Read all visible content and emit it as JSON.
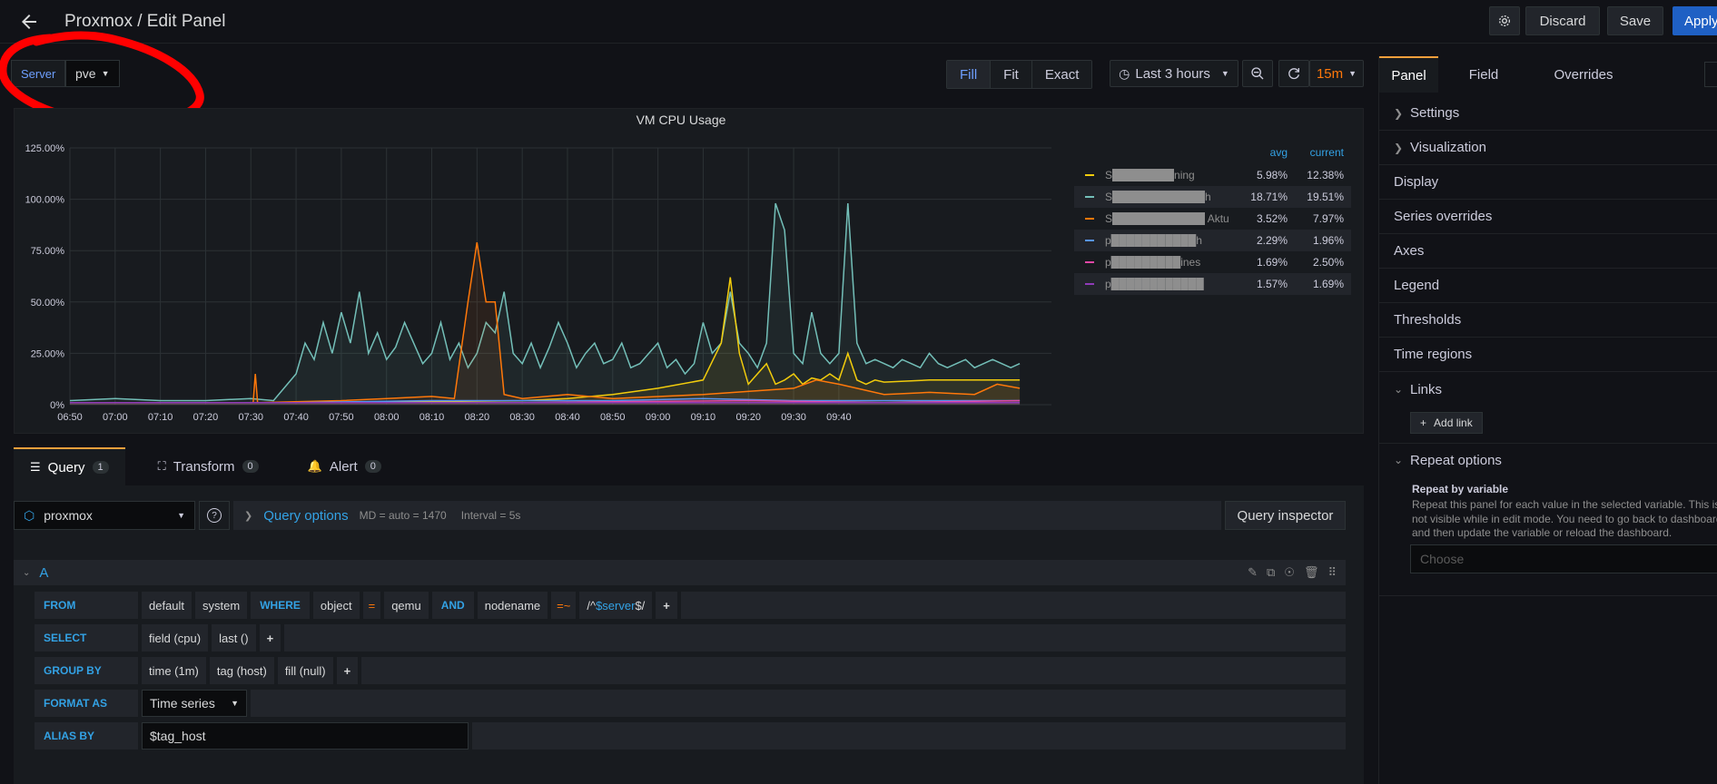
{
  "header": {
    "title": "Proxmox / Edit Panel",
    "discard_label": "Discard",
    "save_label": "Save",
    "apply_label": "Apply"
  },
  "variables": {
    "server_label": "Server",
    "server_value": "pve"
  },
  "view_modes": [
    "Fill",
    "Fit",
    "Exact"
  ],
  "time_picker": {
    "range": "Last 3 hours",
    "refresh": "15m"
  },
  "panel": {
    "title": "VM CPU Usage",
    "legend": {
      "col_avg": "avg",
      "col_current": "current",
      "rows": [
        {
          "name": "S████████ning",
          "avg": "5.98%",
          "current": "12.38%",
          "color": "#f2cc0c"
        },
        {
          "name": "S████████████h",
          "avg": "18.71%",
          "current": "19.51%",
          "color": "#73bfb8"
        },
        {
          "name": "S████████████ Aktuell",
          "avg": "3.52%",
          "current": "7.97%",
          "color": "#ff780a"
        },
        {
          "name": "p███████████h",
          "avg": "2.29%",
          "current": "1.96%",
          "color": "#5794f2"
        },
        {
          "name": "p█████████ines",
          "avg": "1.69%",
          "current": "2.50%",
          "color": "#e048a6"
        },
        {
          "name": "p████████████",
          "avg": "1.57%",
          "current": "1.69%",
          "color": "#8f3bb8"
        }
      ]
    }
  },
  "chart_data": {
    "type": "line",
    "title": "VM CPU Usage",
    "y_ticks": [
      "0%",
      "25.00%",
      "50.00%",
      "75.00%",
      "100.00%",
      "125.00%"
    ],
    "ylim": [
      0,
      125
    ],
    "x_ticks": [
      "06:50",
      "07:00",
      "07:10",
      "07:20",
      "07:30",
      "07:40",
      "07:50",
      "08:00",
      "08:10",
      "08:20",
      "08:30",
      "08:40",
      "08:50",
      "09:00",
      "09:10",
      "09:20",
      "09:30",
      "09:40"
    ],
    "x_range_minutes": [
      0,
      180
    ],
    "series": [
      {
        "color": "#73bfb8",
        "points": [
          [
            0,
            2
          ],
          [
            10,
            3
          ],
          [
            20,
            2
          ],
          [
            30,
            2
          ],
          [
            40,
            3
          ],
          [
            45,
            2
          ],
          [
            50,
            15
          ],
          [
            52,
            30
          ],
          [
            54,
            22
          ],
          [
            56,
            40
          ],
          [
            58,
            25
          ],
          [
            60,
            45
          ],
          [
            62,
            30
          ],
          [
            64,
            55
          ],
          [
            66,
            25
          ],
          [
            68,
            35
          ],
          [
            70,
            22
          ],
          [
            72,
            28
          ],
          [
            74,
            40
          ],
          [
            76,
            30
          ],
          [
            78,
            20
          ],
          [
            80,
            25
          ],
          [
            82,
            40
          ],
          [
            84,
            22
          ],
          [
            86,
            30
          ],
          [
            88,
            18
          ],
          [
            90,
            25
          ],
          [
            92,
            40
          ],
          [
            94,
            35
          ],
          [
            96,
            55
          ],
          [
            98,
            25
          ],
          [
            100,
            20
          ],
          [
            102,
            30
          ],
          [
            104,
            18
          ],
          [
            106,
            28
          ],
          [
            108,
            40
          ],
          [
            110,
            30
          ],
          [
            112,
            18
          ],
          [
            114,
            25
          ],
          [
            116,
            30
          ],
          [
            118,
            20
          ],
          [
            120,
            22
          ],
          [
            122,
            30
          ],
          [
            124,
            18
          ],
          [
            126,
            20
          ],
          [
            128,
            25
          ],
          [
            130,
            30
          ],
          [
            132,
            18
          ],
          [
            134,
            22
          ],
          [
            136,
            15
          ],
          [
            138,
            20
          ],
          [
            140,
            40
          ],
          [
            142,
            25
          ],
          [
            144,
            30
          ],
          [
            146,
            55
          ],
          [
            148,
            30
          ],
          [
            150,
            25
          ],
          [
            152,
            18
          ],
          [
            154,
            30
          ],
          [
            156,
            98
          ],
          [
            158,
            85
          ],
          [
            160,
            25
          ],
          [
            162,
            20
          ],
          [
            164,
            45
          ],
          [
            166,
            25
          ],
          [
            168,
            20
          ],
          [
            170,
            25
          ],
          [
            172,
            98
          ],
          [
            174,
            30
          ],
          [
            176,
            20
          ],
          [
            178,
            22
          ],
          [
            180,
            20
          ],
          [
            182,
            18
          ],
          [
            184,
            22
          ],
          [
            186,
            20
          ],
          [
            188,
            18
          ],
          [
            190,
            25
          ],
          [
            192,
            20
          ],
          [
            194,
            18
          ],
          [
            196,
            20
          ],
          [
            198,
            22
          ],
          [
            200,
            18
          ],
          [
            202,
            20
          ],
          [
            204,
            22
          ],
          [
            206,
            20
          ],
          [
            208,
            18
          ],
          [
            210,
            20
          ]
        ]
      },
      {
        "color": "#f2cc0c",
        "points": [
          [
            0,
            1
          ],
          [
            60,
            1
          ],
          [
            100,
            2
          ],
          [
            110,
            3
          ],
          [
            120,
            5
          ],
          [
            130,
            8
          ],
          [
            140,
            12
          ],
          [
            144,
            30
          ],
          [
            146,
            62
          ],
          [
            148,
            25
          ],
          [
            150,
            10
          ],
          [
            152,
            15
          ],
          [
            154,
            20
          ],
          [
            156,
            10
          ],
          [
            158,
            12
          ],
          [
            160,
            15
          ],
          [
            162,
            10
          ],
          [
            164,
            13
          ],
          [
            166,
            12
          ],
          [
            168,
            15
          ],
          [
            170,
            12
          ],
          [
            172,
            25
          ],
          [
            174,
            12
          ],
          [
            176,
            10
          ],
          [
            178,
            12
          ],
          [
            180,
            11
          ],
          [
            190,
            12
          ],
          [
            200,
            12
          ],
          [
            210,
            12
          ]
        ]
      },
      {
        "color": "#ff780a",
        "points": [
          [
            0,
            1
          ],
          [
            40,
            1
          ],
          [
            40.5,
            1
          ],
          [
            41,
            15
          ],
          [
            41.5,
            1
          ],
          [
            60,
            2
          ],
          [
            70,
            3
          ],
          [
            80,
            4
          ],
          [
            85,
            3
          ],
          [
            88,
            50
          ],
          [
            90,
            79
          ],
          [
            92,
            50
          ],
          [
            94,
            50
          ],
          [
            96,
            5
          ],
          [
            100,
            3
          ],
          [
            110,
            5
          ],
          [
            120,
            3
          ],
          [
            140,
            5
          ],
          [
            160,
            8
          ],
          [
            165,
            12
          ],
          [
            170,
            10
          ],
          [
            180,
            5
          ],
          [
            190,
            6
          ],
          [
            200,
            5
          ],
          [
            205,
            10
          ],
          [
            210,
            8
          ]
        ]
      },
      {
        "color": "#5794f2",
        "points": [
          [
            0,
            1
          ],
          [
            50,
            1
          ],
          [
            80,
            2
          ],
          [
            100,
            2
          ],
          [
            120,
            2
          ],
          [
            140,
            3
          ],
          [
            160,
            2
          ],
          [
            180,
            2
          ],
          [
            200,
            2
          ],
          [
            210,
            2
          ]
        ]
      },
      {
        "color": "#e048a6",
        "points": [
          [
            0,
            1
          ],
          [
            50,
            1
          ],
          [
            100,
            1
          ],
          [
            150,
            2
          ],
          [
            180,
            1
          ],
          [
            210,
            2
          ]
        ]
      },
      {
        "color": "#8f3bb8",
        "points": [
          [
            0,
            1
          ],
          [
            50,
            1
          ],
          [
            100,
            1
          ],
          [
            150,
            1
          ],
          [
            180,
            1
          ],
          [
            210,
            1
          ]
        ]
      }
    ]
  },
  "query_tabs": [
    {
      "label": "Query",
      "count": "1"
    },
    {
      "label": "Transform",
      "count": "0"
    },
    {
      "label": "Alert",
      "count": "0"
    }
  ],
  "query": {
    "datasource": "proxmox",
    "options_label": "Query options",
    "options_md": "MD = auto = 1470",
    "options_interval": "Interval = 5s",
    "inspector_label": "Query inspector",
    "ref_id": "A",
    "from": {
      "kw": "FROM",
      "db": "default",
      "table": "system",
      "where_kw": "WHERE",
      "f1": "object",
      "op1": "=",
      "v1": "qemu",
      "and_kw": "AND",
      "f2": "nodename",
      "op2": "=~",
      "v2_prefix": "/^",
      "v2_var": "$server",
      "v2_suffix": "$/"
    },
    "select": {
      "kw": "SELECT",
      "field": "field (cpu)",
      "fn": "last ()"
    },
    "group": {
      "kw": "GROUP BY",
      "time": "time (1m)",
      "tag": "tag (host)",
      "fill": "fill (null)"
    },
    "format": {
      "kw": "FORMAT AS",
      "value": "Time series"
    },
    "alias": {
      "kw": "ALIAS BY",
      "value": "$tag_host"
    }
  },
  "sidebar": {
    "tabs": [
      "Panel",
      "Field",
      "Overrides"
    ],
    "sections": [
      "Settings",
      "Visualization",
      "Display",
      "Series overrides",
      "Axes",
      "Legend",
      "Thresholds",
      "Time regions",
      "Links"
    ],
    "add_link": "Add link",
    "repeat_title": "Repeat options",
    "repeat_by_label": "Repeat by variable",
    "repeat_desc": "Repeat this panel for each value in the selected variable. This is not visible while in edit mode. You need to go back to dashboard and then update the variable or reload the dashboard.",
    "repeat_placeholder": "Choose"
  }
}
